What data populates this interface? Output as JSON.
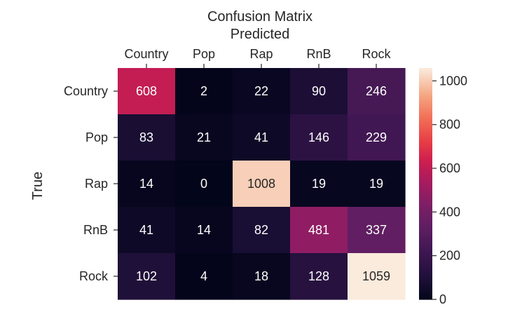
{
  "chart_data": {
    "type": "heatmap",
    "title": "Confusion Matrix",
    "xlabel": "Predicted",
    "ylabel": "True",
    "x_categories": [
      "Country",
      "Pop",
      "Rap",
      "RnB",
      "Rock"
    ],
    "y_categories": [
      "Country",
      "Pop",
      "Rap",
      "RnB",
      "Rock"
    ],
    "values": [
      [
        608,
        2,
        22,
        90,
        246
      ],
      [
        83,
        21,
        41,
        146,
        229
      ],
      [
        14,
        0,
        1008,
        19,
        19
      ],
      [
        41,
        14,
        82,
        481,
        337
      ],
      [
        102,
        4,
        18,
        128,
        1059
      ]
    ],
    "xaxis_position": "top",
    "colormap": "rocket",
    "colorbar": {
      "vmin": 0,
      "vmax": 1059,
      "ticks": [
        0,
        200,
        400,
        600,
        800,
        1000
      ],
      "tick_labels": [
        "0",
        "200",
        "400",
        "600",
        "800",
        "1000"
      ]
    },
    "grid": false
  }
}
